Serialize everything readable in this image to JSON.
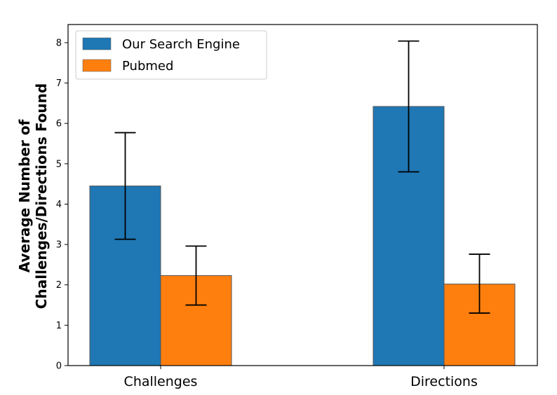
{
  "chart_data": {
    "type": "bar",
    "categories": [
      "Challenges",
      "Directions"
    ],
    "series": [
      {
        "name": "Our Search Engine",
        "color": "#1f77b4",
        "values": [
          4.45,
          6.42
        ],
        "error_low": [
          3.13,
          4.8
        ],
        "error_high": [
          5.77,
          8.04
        ]
      },
      {
        "name": "Pubmed",
        "color": "#ff7f0e",
        "values": [
          2.23,
          2.02
        ],
        "error_low": [
          1.5,
          1.3
        ],
        "error_high": [
          2.96,
          2.76
        ]
      }
    ],
    "title": "",
    "xlabel": "",
    "ylabel_lines": [
      "Average Number of",
      "Challenges/Directions Found"
    ],
    "ylim": [
      0,
      8.45
    ],
    "yticks": [
      0,
      1,
      2,
      3,
      4,
      5,
      6,
      7,
      8
    ],
    "grid": false,
    "legend_position": "top-left"
  }
}
